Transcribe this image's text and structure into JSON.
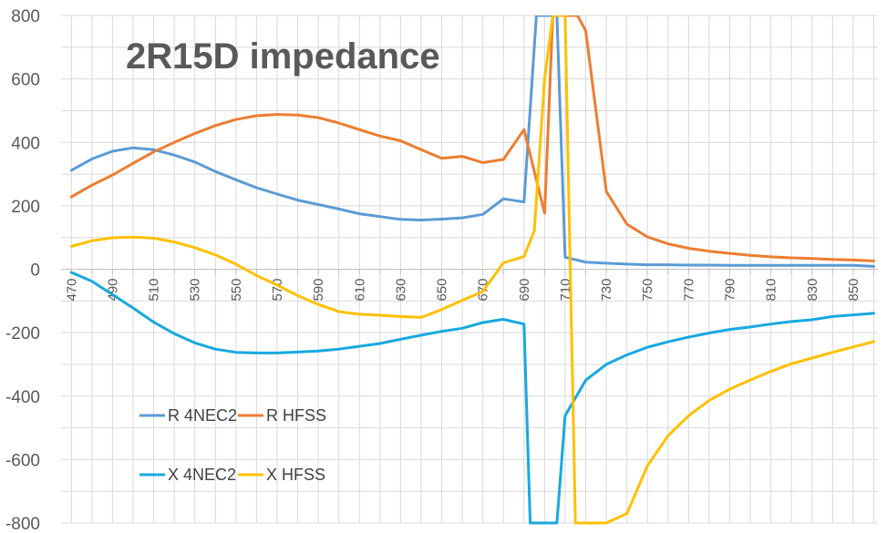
{
  "chart_data": {
    "type": "line",
    "title": "2R15D impedance",
    "xlabel": "",
    "ylabel": "",
    "ylim": [
      -800,
      800
    ],
    "yticks": [
      800,
      600,
      400,
      200,
      0,
      -200,
      -400,
      -600,
      -800
    ],
    "xlim": [
      465,
      862
    ],
    "xticks": [
      470,
      490,
      510,
      530,
      550,
      570,
      590,
      610,
      630,
      650,
      670,
      690,
      710,
      730,
      750,
      770,
      790,
      810,
      830,
      850
    ],
    "grid": true,
    "legend_position": "bottom-left",
    "series": [
      {
        "name": "R 4NEC2",
        "color": "#5b9bd5",
        "x": [
          470,
          480,
          490,
          500,
          510,
          520,
          530,
          540,
          550,
          560,
          570,
          580,
          590,
          600,
          610,
          620,
          630,
          640,
          650,
          660,
          670,
          680,
          690,
          696,
          700,
          706,
          710,
          720,
          730,
          740,
          750,
          760,
          770,
          780,
          790,
          800,
          810,
          820,
          830,
          840,
          850,
          860
        ],
        "y": [
          312,
          348,
          372,
          383,
          377,
          360,
          338,
          308,
          282,
          257,
          237,
          218,
          204,
          190,
          175,
          166,
          157,
          155,
          158,
          162,
          173,
          222,
          212,
          800,
          800,
          800,
          38,
          22,
          19,
          16,
          14,
          14,
          13,
          13,
          12,
          12,
          12,
          12,
          12,
          12,
          12,
          9
        ]
      },
      {
        "name": "R HFSS",
        "color": "#ed7d31",
        "x": [
          470,
          480,
          490,
          500,
          510,
          520,
          530,
          540,
          550,
          560,
          570,
          580,
          590,
          600,
          610,
          620,
          630,
          640,
          650,
          660,
          670,
          680,
          690,
          700,
          704,
          710,
          716,
          720,
          730,
          740,
          750,
          760,
          770,
          780,
          790,
          800,
          810,
          820,
          830,
          840,
          850,
          860
        ],
        "y": [
          228,
          265,
          297,
          334,
          370,
          400,
          428,
          453,
          472,
          484,
          488,
          486,
          478,
          461,
          440,
          420,
          405,
          377,
          350,
          356,
          336,
          346,
          440,
          177,
          800,
          800,
          800,
          752,
          245,
          142,
          102,
          80,
          66,
          57,
          50,
          44,
          39,
          36,
          34,
          31,
          29,
          26
        ]
      },
      {
        "name": "X 4NEC2",
        "color": "#17a9df",
        "x": [
          470,
          480,
          490,
          500,
          510,
          520,
          530,
          540,
          550,
          560,
          570,
          580,
          590,
          600,
          610,
          620,
          630,
          640,
          650,
          660,
          670,
          680,
          690,
          693,
          700,
          706,
          710,
          720,
          730,
          740,
          750,
          760,
          770,
          780,
          790,
          800,
          810,
          820,
          830,
          840,
          850,
          860
        ],
        "y": [
          -10,
          -38,
          -80,
          -122,
          -167,
          -203,
          -232,
          -252,
          -262,
          -264,
          -264,
          -261,
          -258,
          -252,
          -243,
          -234,
          -221,
          -208,
          -196,
          -186,
          -168,
          -158,
          -173,
          -800,
          -800,
          -800,
          -462,
          -350,
          -300,
          -270,
          -246,
          -229,
          -214,
          -201,
          -190,
          -182,
          -173,
          -165,
          -159,
          -149,
          -144,
          -139
        ]
      },
      {
        "name": "X HFSS",
        "color": "#ffc000",
        "x": [
          470,
          480,
          490,
          500,
          510,
          520,
          530,
          540,
          550,
          560,
          570,
          580,
          590,
          600,
          610,
          620,
          630,
          640,
          650,
          660,
          670,
          680,
          690,
          695,
          700,
          704,
          710,
          715,
          720,
          730,
          740,
          750,
          760,
          770,
          780,
          790,
          800,
          810,
          820,
          830,
          840,
          850,
          860
        ],
        "y": [
          72,
          90,
          99,
          101,
          98,
          86,
          68,
          45,
          16,
          -20,
          -50,
          -83,
          -111,
          -134,
          -142,
          -145,
          -149,
          -152,
          -127,
          -98,
          -70,
          20,
          40,
          121,
          600,
          800,
          800,
          -800,
          -800,
          -800,
          -770,
          -620,
          -525,
          -462,
          -414,
          -378,
          -349,
          -322,
          -298,
          -280,
          -262,
          -245,
          -228
        ]
      }
    ]
  }
}
